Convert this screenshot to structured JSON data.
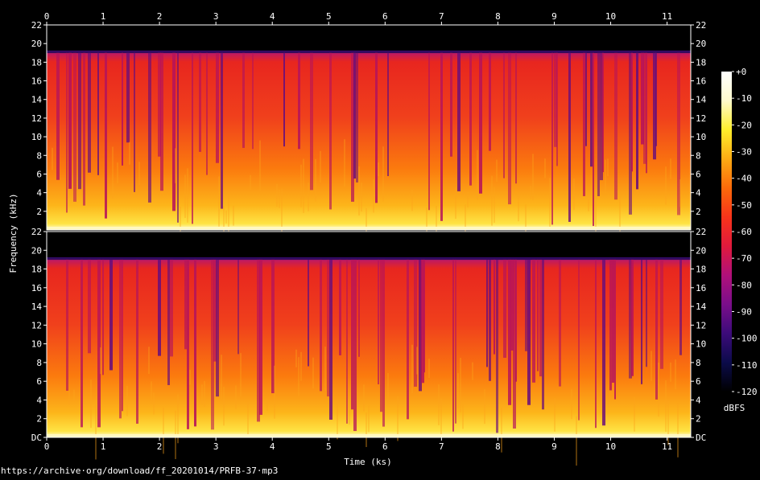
{
  "chart_data": {
    "type": "heatmap",
    "title": "",
    "xlabel": "Time (ks)",
    "ylabel": "Frequency (kHz)",
    "x_ticks": [
      "0",
      "1",
      "2",
      "3",
      "4",
      "5",
      "6",
      "7",
      "8",
      "9",
      "10",
      "11"
    ],
    "xlim": [
      0,
      11.42
    ],
    "channels": [
      {
        "y_ticks": [
          "2",
          "4",
          "6",
          "8",
          "10",
          "12",
          "14",
          "16",
          "18",
          "20",
          "22"
        ],
        "ylim": [
          0,
          22
        ]
      },
      {
        "y_ticks": [
          "DC",
          "2",
          "4",
          "6",
          "8",
          "10",
          "12",
          "14",
          "16",
          "18",
          "20",
          "22"
        ],
        "ylim": [
          0,
          22
        ]
      }
    ],
    "colorbar": {
      "label": "dBFS",
      "ticks": [
        "+0",
        "-10",
        "-20",
        "-30",
        "-40",
        "-50",
        "-60",
        "-70",
        "-80",
        "-90",
        "-100",
        "-110",
        "-120"
      ],
      "range": [
        -120,
        0
      ],
      "colors": [
        "#000000",
        "#0b0b4a",
        "#3c0b7a",
        "#7a0e8a",
        "#b0107a",
        "#e01a3c",
        "#f8341a",
        "#fb6a0a",
        "#fdab14",
        "#feee2c",
        "#fffacc",
        "#ffffff"
      ]
    },
    "cutoff_khz": 19,
    "source_url": "https://archive·org/download/ff_20201014/PRFB-37·mp3"
  }
}
